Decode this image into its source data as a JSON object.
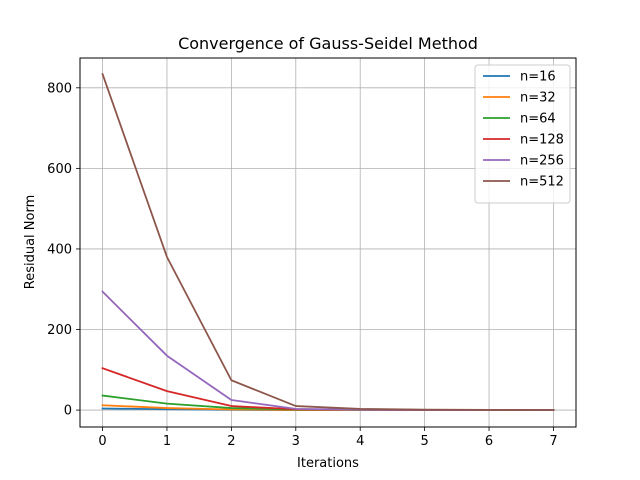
{
  "chart_data": {
    "type": "line",
    "title": "Convergence of Gauss-Seidel Method",
    "xlabel": "Iterations",
    "ylabel": "Residual Norm",
    "xlim": [
      -0.35,
      7.35
    ],
    "ylim": [
      -42,
      874
    ],
    "xticks": [
      0,
      1,
      2,
      3,
      4,
      5,
      6,
      7
    ],
    "yticks": [
      0,
      200,
      400,
      600,
      800
    ],
    "grid": true,
    "legend_position": "top-right",
    "x": [
      0,
      1,
      2,
      3,
      4,
      5,
      6,
      7
    ],
    "series": [
      {
        "name": "n=16",
        "color": "#1f77b4",
        "values": [
          4,
          2,
          0.5,
          0.1,
          0.05,
          0.02,
          0.01,
          0.01
        ]
      },
      {
        "name": "n=32",
        "color": "#ff7f0e",
        "values": [
          12,
          5,
          1.5,
          0.4,
          0.1,
          0.05,
          0.02,
          0.01
        ]
      },
      {
        "name": "n=64",
        "color": "#2ca02c",
        "values": [
          36,
          16,
          5,
          1.5,
          0.5,
          0.2,
          0.1,
          0.05
        ]
      },
      {
        "name": "n=128",
        "color": "#d62728",
        "values": [
          104,
          47,
          10,
          2,
          0.8,
          0.3,
          0.1,
          0.05
        ]
      },
      {
        "name": "n=256",
        "color": "#9467bd",
        "values": [
          294,
          135,
          25,
          3,
          1,
          0.4,
          0.2,
          0.1
        ]
      },
      {
        "name": "n=512",
        "color": "#8c564b",
        "values": [
          834,
          380,
          74,
          10,
          3,
          1,
          0.5,
          0.2
        ]
      }
    ]
  }
}
